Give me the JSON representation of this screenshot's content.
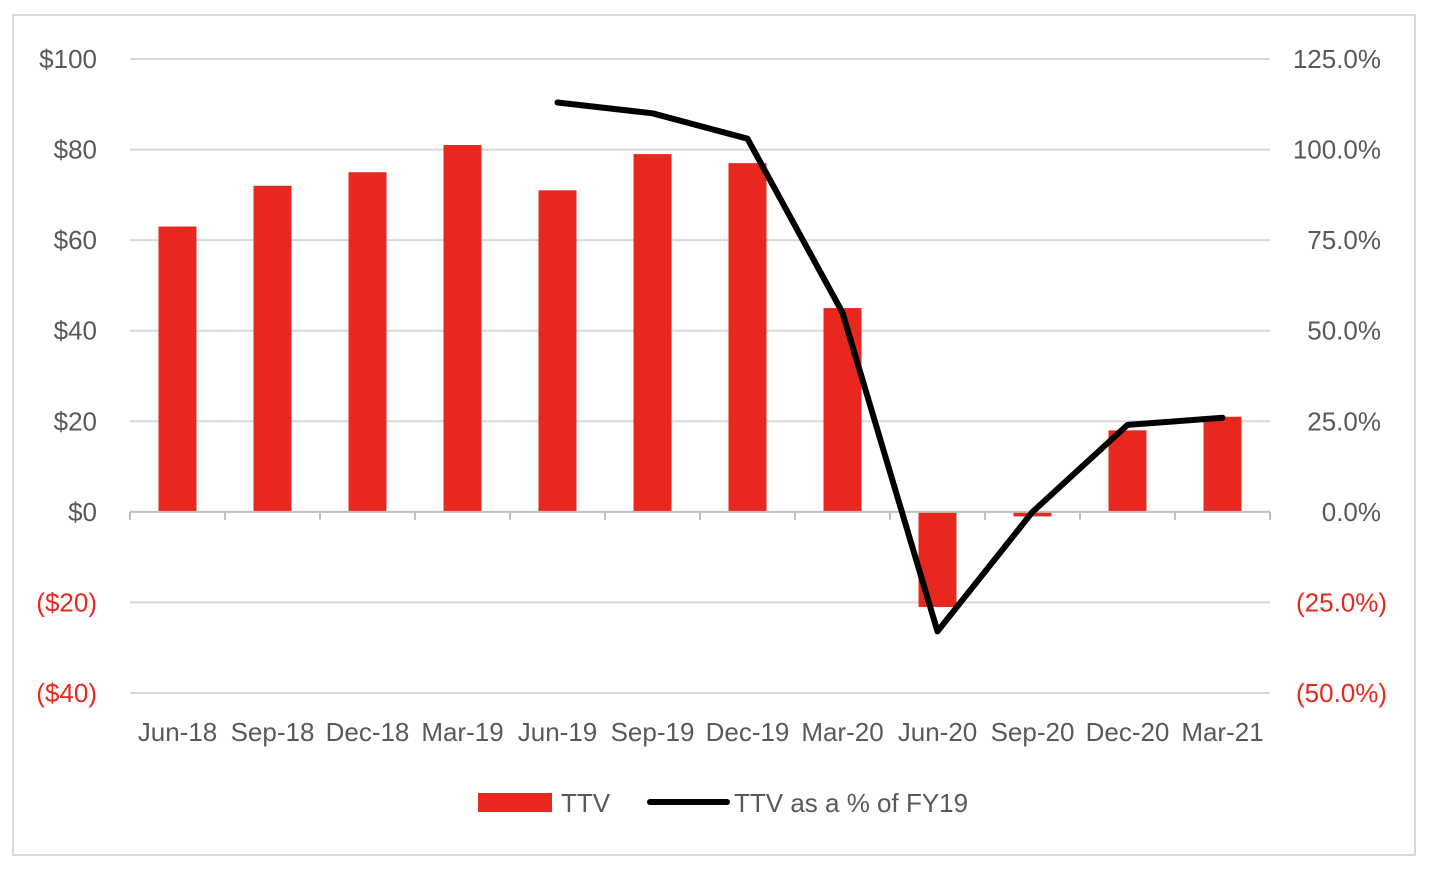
{
  "chart_data": {
    "type": "bar",
    "categories": [
      "Jun-18",
      "Sep-18",
      "Dec-18",
      "Mar-19",
      "Jun-19",
      "Sep-19",
      "Dec-19",
      "Mar-20",
      "Jun-20",
      "Sep-20",
      "Dec-20",
      "Mar-21"
    ],
    "series": [
      {
        "name": "TTV",
        "kind": "bar",
        "axis": "left",
        "color": "#e8281e",
        "values": [
          63,
          72,
          75,
          81,
          71,
          79,
          77,
          45,
          -21,
          -1,
          18,
          21
        ]
      },
      {
        "name": "TTV as a % of FY19",
        "kind": "line",
        "axis": "right",
        "color": "#000000",
        "values": [
          null,
          null,
          null,
          null,
          113.0,
          110.0,
          103.0,
          55.0,
          -33.0,
          0.0,
          24.0,
          26.0
        ]
      }
    ],
    "left_axis": {
      "ylim": [
        -40,
        100
      ],
      "ticks": [
        {
          "value": 100,
          "label": "$100",
          "negative": false
        },
        {
          "value": 80,
          "label": "$80",
          "negative": false
        },
        {
          "value": 60,
          "label": "$60",
          "negative": false
        },
        {
          "value": 40,
          "label": "$40",
          "negative": false
        },
        {
          "value": 20,
          "label": "$20",
          "negative": false
        },
        {
          "value": 0,
          "label": "$0",
          "negative": false
        },
        {
          "value": -20,
          "label": "($20)",
          "negative": true
        },
        {
          "value": -40,
          "label": "($40)",
          "negative": true
        }
      ]
    },
    "right_axis": {
      "ylim": [
        -50,
        125
      ],
      "ticks": [
        {
          "value": 125,
          "label": "125.0%",
          "negative": false
        },
        {
          "value": 100,
          "label": "100.0%",
          "negative": false
        },
        {
          "value": 75,
          "label": "75.0%",
          "negative": false
        },
        {
          "value": 50,
          "label": "50.0%",
          "negative": false
        },
        {
          "value": 25,
          "label": "25.0%",
          "negative": false
        },
        {
          "value": 0,
          "label": "0.0%",
          "negative": false
        },
        {
          "value": -25,
          "label": "(25.0%)",
          "negative": true
        },
        {
          "value": -50,
          "label": "(50.0%)",
          "negative": true
        }
      ]
    },
    "negative_tick_color": "#e8281e",
    "grid": true,
    "legend": {
      "position": "bottom",
      "items": [
        {
          "label": "TTV",
          "kind": "bar"
        },
        {
          "label": "TTV as a % of FY19",
          "kind": "line"
        }
      ]
    }
  }
}
